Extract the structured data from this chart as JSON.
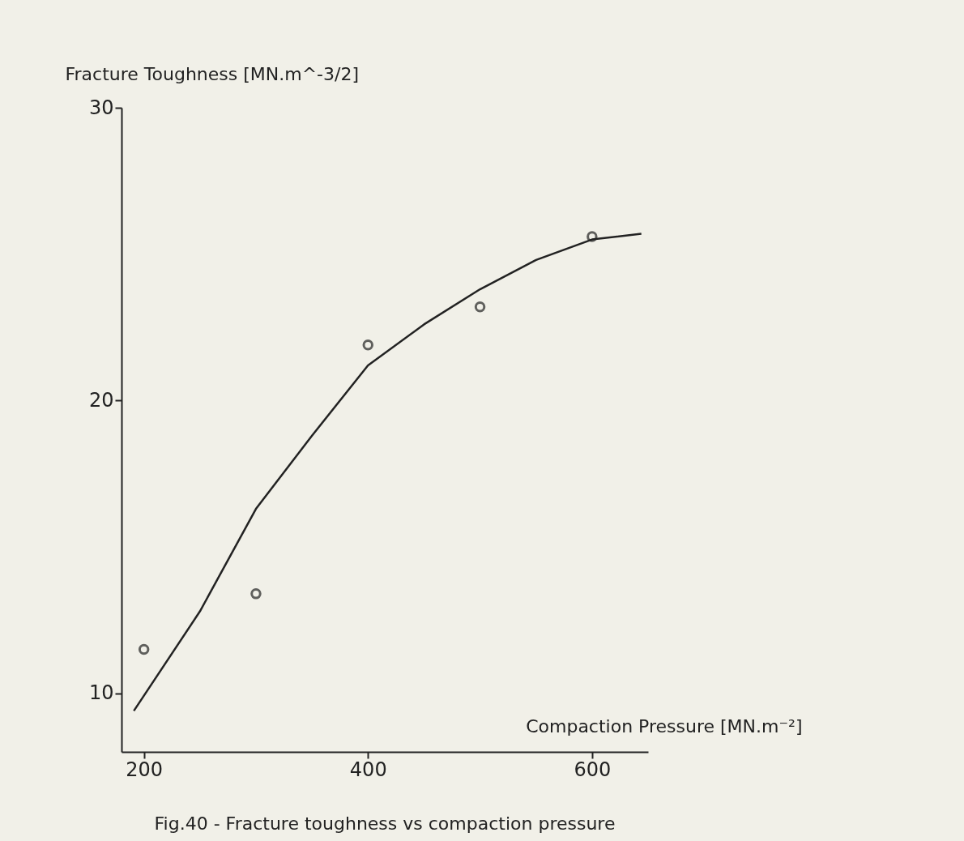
{
  "chart_data": {
    "type": "scatter",
    "xlabel": "Compaction Pressure [MN.m⁻²]",
    "ylabel": "Fracture Toughness [MN.m^-3/2]",
    "x": [
      200,
      300,
      400,
      500,
      600
    ],
    "series": [
      {
        "type": "scatter",
        "color": "#222222",
        "marker": "circle",
        "values": [
          11.5,
          13.4,
          21.9,
          23.2,
          25.6
        ]
      },
      {
        "type": "line",
        "color": "#222222",
        "marker": "none",
        "line_style": "solid",
        "x": [
          191,
          250,
          300,
          350,
          400,
          450,
          500,
          550,
          600,
          644
        ],
        "values": [
          9.4,
          12.8,
          16.3,
          18.8,
          21.2,
          22.6,
          23.8,
          24.8,
          25.5,
          25.7
        ]
      }
    ],
    "xlim": [
      180,
      650
    ],
    "ylim": [
      8,
      30
    ],
    "xticks": [
      200,
      400,
      600
    ],
    "yticks": [
      10,
      20,
      30
    ],
    "grid": false,
    "annotations": [
      "Fig.40 - Fracture toughness vs compaction pressure"
    ]
  }
}
